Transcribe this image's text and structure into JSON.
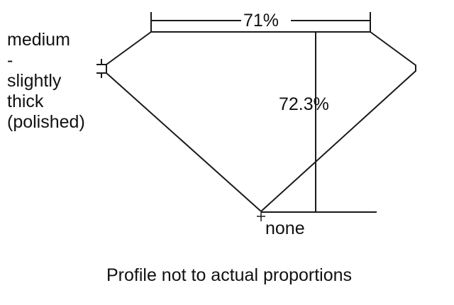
{
  "girdle_label": [
    "medium",
    "-",
    "slightly",
    "thick",
    "(polished)"
  ],
  "table_percent": "71%",
  "depth_percent": "72.3%",
  "culet_label": "none",
  "caption": "Profile not to actual proportions",
  "line_color": "#1a1a1a"
}
